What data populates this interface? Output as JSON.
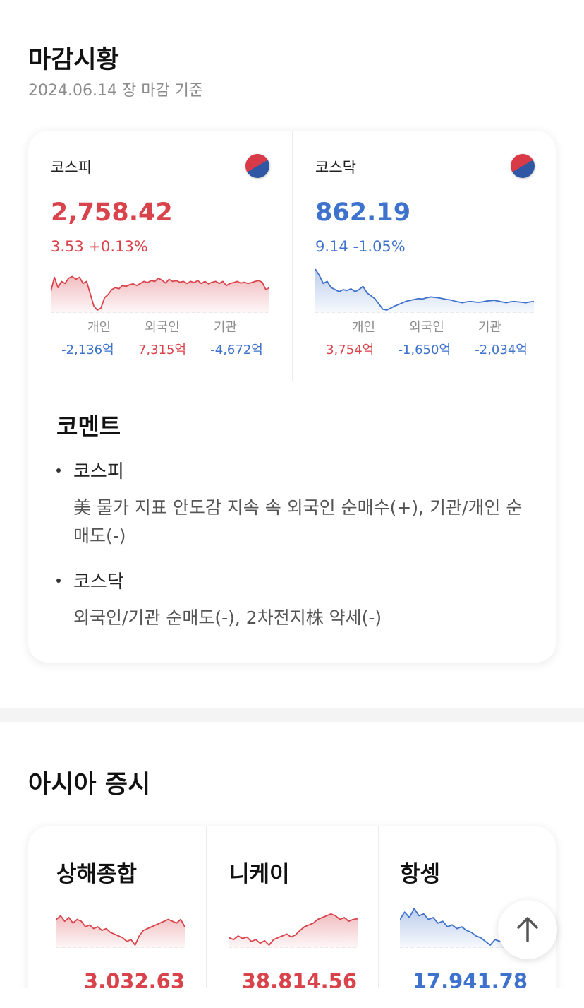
{
  "close": {
    "title": "마감시황",
    "subtitle": "2024.06.14 장 마감 기준",
    "indices": [
      {
        "name": "코스피",
        "value": "2,758.42",
        "change": "3.53",
        "change_pct": "+0.13%",
        "direction": "up",
        "investor_labels": [
          "개인",
          "외국인",
          "기관"
        ],
        "investor_values": [
          "-2,136억",
          "7,315억",
          "-4,672억"
        ],
        "investor_dirs": [
          "down",
          "up",
          "down"
        ],
        "spark": [
          0.55,
          0.2,
          0.45,
          0.3,
          0.35,
          0.22,
          0.18,
          0.25,
          0.2,
          0.35,
          0.3,
          0.6,
          0.9,
          1.0,
          0.95,
          0.7,
          0.62,
          0.5,
          0.45,
          0.48,
          0.4,
          0.42,
          0.38,
          0.36,
          0.4,
          0.35,
          0.3,
          0.33,
          0.28,
          0.3,
          0.22,
          0.27,
          0.34,
          0.25,
          0.3,
          0.28,
          0.32,
          0.3,
          0.35,
          0.3,
          0.33,
          0.28,
          0.35,
          0.3,
          0.36,
          0.32,
          0.3,
          0.35,
          0.3,
          0.4,
          0.35,
          0.33,
          0.3,
          0.34,
          0.32,
          0.35,
          0.33,
          0.3,
          0.28,
          0.32,
          0.5,
          0.45
        ]
      },
      {
        "name": "코스닥",
        "value": "862.19",
        "change": "9.14",
        "change_pct": "-1.05%",
        "direction": "down",
        "investor_labels": [
          "개인",
          "외국인",
          "기관"
        ],
        "investor_values": [
          "3,754억",
          "-1,650억",
          "-2,034억"
        ],
        "investor_dirs": [
          "up",
          "down",
          "down"
        ],
        "spark": [
          0.0,
          0.15,
          0.35,
          0.3,
          0.45,
          0.5,
          0.55,
          0.5,
          0.52,
          0.48,
          0.55,
          0.5,
          0.42,
          0.58,
          0.65,
          0.72,
          0.85,
          0.98,
          1.0,
          0.95,
          0.9,
          0.86,
          0.82,
          0.78,
          0.76,
          0.74,
          0.72,
          0.73,
          0.7,
          0.68,
          0.69,
          0.7,
          0.72,
          0.74,
          0.75,
          0.78,
          0.8,
          0.82,
          0.8,
          0.79,
          0.8,
          0.81,
          0.8,
          0.78,
          0.77,
          0.76,
          0.78,
          0.8,
          0.82,
          0.8,
          0.79,
          0.8,
          0.81,
          0.82,
          0.8,
          0.79
        ]
      }
    ],
    "comment_title": "코멘트",
    "comments": [
      {
        "title": "코스피",
        "body": "美 물가 지표 안도감 지속 속 외국인 순매수(+), 기관/개인 순매도(-)"
      },
      {
        "title": "코스닥",
        "body": "외국인/기관 순매도(-), 2차전지株 약세(-)"
      }
    ]
  },
  "asia": {
    "title": "아시아 증시",
    "markets": [
      {
        "name": "상해종합",
        "value": "3,032.63",
        "direction": "up",
        "spark": [
          0.3,
          0.2,
          0.35,
          0.25,
          0.4,
          0.3,
          0.35,
          0.5,
          0.45,
          0.55,
          0.5,
          0.6,
          0.55,
          0.65,
          0.7,
          0.75,
          0.8,
          0.9,
          0.85,
          1.0,
          0.75,
          0.6,
          0.55,
          0.5,
          0.45,
          0.4,
          0.35,
          0.3,
          0.35,
          0.4,
          0.3,
          0.5
        ]
      },
      {
        "name": "니케이",
        "value": "38,814.56",
        "direction": "up",
        "spark": [
          0.8,
          0.85,
          0.75,
          0.82,
          0.78,
          0.9,
          0.85,
          0.95,
          0.88,
          1.0,
          0.85,
          0.8,
          0.75,
          0.7,
          0.78,
          0.72,
          0.6,
          0.5,
          0.45,
          0.4,
          0.3,
          0.25,
          0.2,
          0.15,
          0.2,
          0.3,
          0.25,
          0.35,
          0.3,
          0.28
        ]
      },
      {
        "name": "항셍",
        "value": "17,941.78",
        "direction": "down",
        "spark": [
          0.3,
          0.1,
          0.25,
          0.0,
          0.2,
          0.15,
          0.3,
          0.25,
          0.4,
          0.35,
          0.5,
          0.45,
          0.55,
          0.5,
          0.6,
          0.65,
          0.75,
          0.8,
          0.9,
          1.0,
          0.85,
          0.9,
          0.8,
          0.75,
          0.6,
          0.7,
          0.55,
          0.6
        ]
      }
    ]
  },
  "colors": {
    "up": "#d9434b",
    "down": "#3e72cc"
  },
  "icons": {
    "flag": "korea-flag-icon",
    "scroll_top": "arrow-up-icon"
  }
}
